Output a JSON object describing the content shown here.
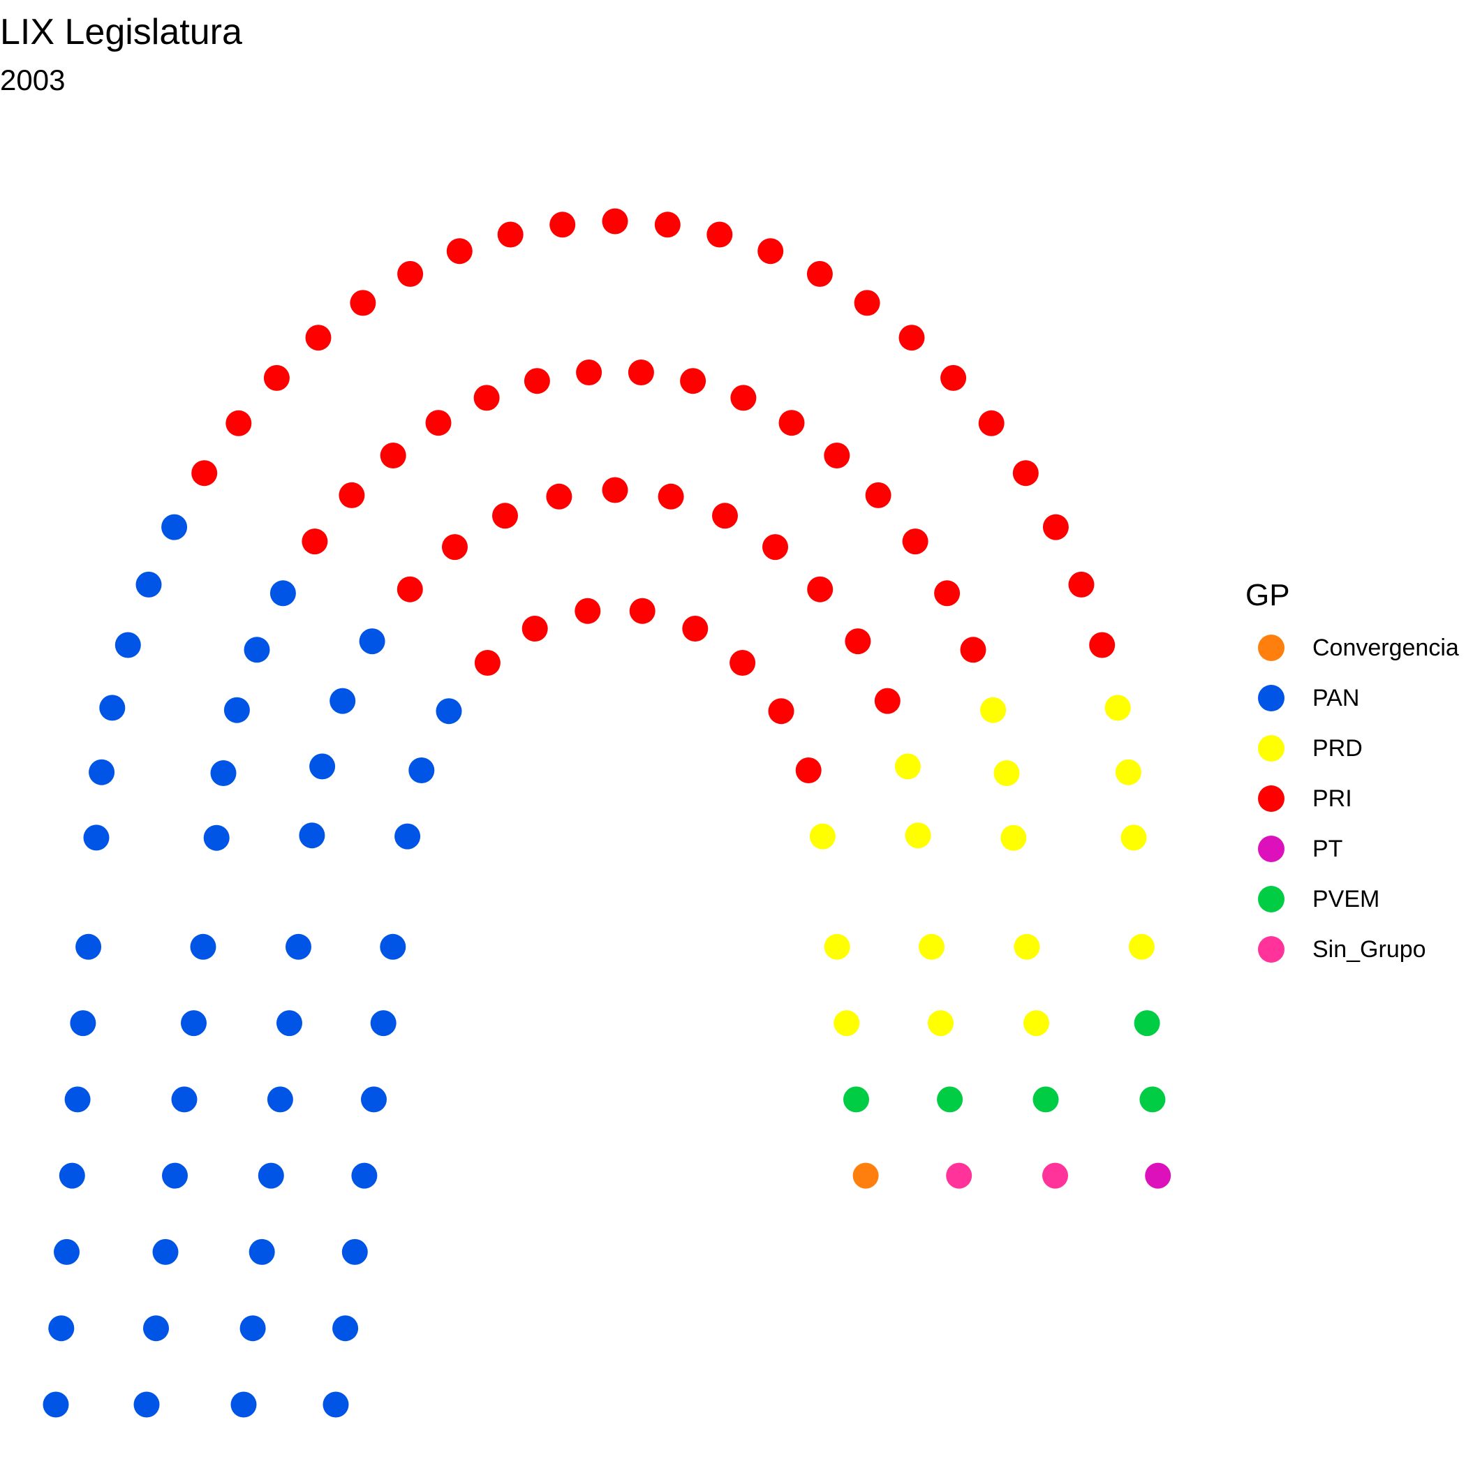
{
  "title": "LIX Legislatura",
  "subtitle": "2003",
  "chart_data": {
    "type": "parliament",
    "legend_title": "GP",
    "legend_position": "right",
    "total_seats": 128,
    "rows": 4,
    "parties": [
      {
        "name": "Convergencia",
        "seats": 1,
        "color": "#FF7F0E"
      },
      {
        "name": "PAN",
        "seats": 46,
        "color": "#0055E6"
      },
      {
        "name": "PRD",
        "seats": 16,
        "color": "#FFFF00"
      },
      {
        "name": "PRI",
        "seats": 57,
        "color": "#FF0000"
      },
      {
        "name": "PT",
        "seats": 1,
        "color": "#DD11BB"
      },
      {
        "name": "PVEM",
        "seats": 5,
        "color": "#00CC44"
      },
      {
        "name": "Sin_Grupo",
        "seats": 2,
        "color": "#FF3399"
      }
    ]
  }
}
